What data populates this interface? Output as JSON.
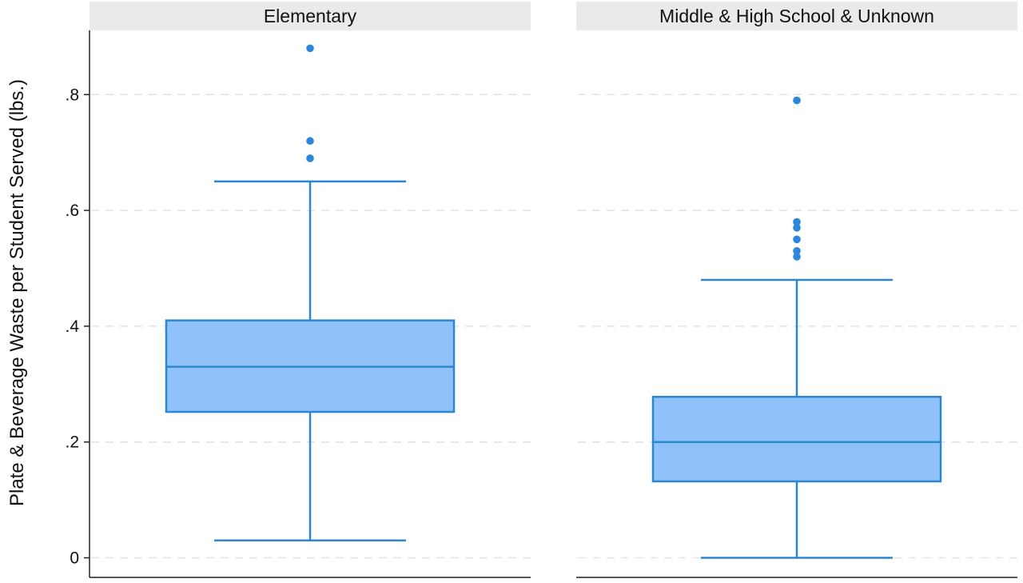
{
  "colors": {
    "box_fill": "#90c2fa",
    "box_stroke": "#2b87d4",
    "outlier": "#2a86de",
    "header_bg": "#eaeaea"
  },
  "chart_data": {
    "type": "box",
    "ylabel": "Plate & Beverage Waste per Student Served (lbs.)",
    "ylim": [
      0,
      0.9
    ],
    "yticks": [
      0,
      0.2,
      0.4,
      0.6,
      0.8
    ],
    "ytick_labels": [
      "0",
      ".2",
      ".4",
      ".6",
      ".8"
    ],
    "grid": "horizontal dashed",
    "panels": [
      {
        "title": "Elementary",
        "whisker_low": 0.03,
        "q1": 0.252,
        "median": 0.33,
        "q3": 0.41,
        "whisker_high": 0.65,
        "outliers": [
          0.69,
          0.72,
          0.88
        ]
      },
      {
        "title": "Middle & High School & Unknown",
        "whisker_low": 0.0,
        "q1": 0.132,
        "median": 0.2,
        "q3": 0.278,
        "whisker_high": 0.48,
        "outliers": [
          0.52,
          0.53,
          0.55,
          0.57,
          0.58,
          0.79
        ]
      }
    ]
  }
}
